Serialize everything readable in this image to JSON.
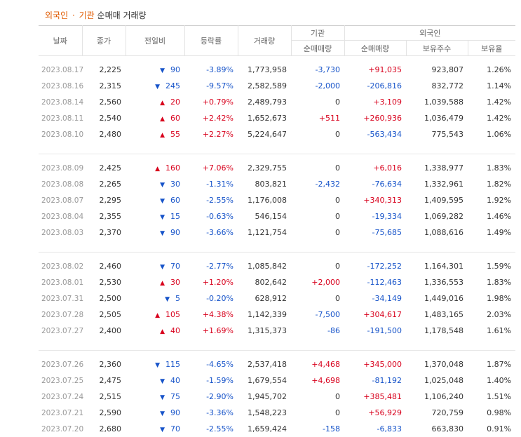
{
  "caption": {
    "part1": "외국인",
    "sep": "·",
    "part2": "기관",
    "rest": "순매매 거래량"
  },
  "headers": {
    "date": "날짜",
    "close": "종가",
    "change": "전일비",
    "rate": "등락률",
    "volume": "거래량",
    "inst": "기관",
    "inst_net": "순매매량",
    "foreign": "외국인",
    "foreign_net": "순매매량",
    "foreign_hold": "보유주수",
    "foreign_ratio": "보유율"
  },
  "groups": [
    [
      {
        "date": "2023.08.17",
        "close": "2,225",
        "dir": "down",
        "chg": "90",
        "rate": "-3.89%",
        "vol": "1,773,958",
        "inst": "-3,730",
        "fnet": "+91,035",
        "hold": "923,807",
        "ratio": "1.26%"
      },
      {
        "date": "2023.08.16",
        "close": "2,315",
        "dir": "down",
        "chg": "245",
        "rate": "-9.57%",
        "vol": "2,582,589",
        "inst": "-2,000",
        "fnet": "-206,816",
        "hold": "832,772",
        "ratio": "1.14%"
      },
      {
        "date": "2023.08.14",
        "close": "2,560",
        "dir": "up",
        "chg": "20",
        "rate": "+0.79%",
        "vol": "2,489,793",
        "inst": "0",
        "fnet": "+3,109",
        "hold": "1,039,588",
        "ratio": "1.42%"
      },
      {
        "date": "2023.08.11",
        "close": "2,540",
        "dir": "up",
        "chg": "60",
        "rate": "+2.42%",
        "vol": "1,652,673",
        "inst": "+511",
        "fnet": "+260,936",
        "hold": "1,036,479",
        "ratio": "1.42%"
      },
      {
        "date": "2023.08.10",
        "close": "2,480",
        "dir": "up",
        "chg": "55",
        "rate": "+2.27%",
        "vol": "5,224,647",
        "inst": "0",
        "fnet": "-563,434",
        "hold": "775,543",
        "ratio": "1.06%"
      }
    ],
    [
      {
        "date": "2023.08.09",
        "close": "2,425",
        "dir": "up",
        "chg": "160",
        "rate": "+7.06%",
        "vol": "2,329,755",
        "inst": "0",
        "fnet": "+6,016",
        "hold": "1,338,977",
        "ratio": "1.83%"
      },
      {
        "date": "2023.08.08",
        "close": "2,265",
        "dir": "down",
        "chg": "30",
        "rate": "-1.31%",
        "vol": "803,821",
        "inst": "-2,432",
        "fnet": "-76,634",
        "hold": "1,332,961",
        "ratio": "1.82%"
      },
      {
        "date": "2023.08.07",
        "close": "2,295",
        "dir": "down",
        "chg": "60",
        "rate": "-2.55%",
        "vol": "1,176,008",
        "inst": "0",
        "fnet": "+340,313",
        "hold": "1,409,595",
        "ratio": "1.92%"
      },
      {
        "date": "2023.08.04",
        "close": "2,355",
        "dir": "down",
        "chg": "15",
        "rate": "-0.63%",
        "vol": "546,154",
        "inst": "0",
        "fnet": "-19,334",
        "hold": "1,069,282",
        "ratio": "1.46%"
      },
      {
        "date": "2023.08.03",
        "close": "2,370",
        "dir": "down",
        "chg": "90",
        "rate": "-3.66%",
        "vol": "1,121,754",
        "inst": "0",
        "fnet": "-75,685",
        "hold": "1,088,616",
        "ratio": "1.49%"
      }
    ],
    [
      {
        "date": "2023.08.02",
        "close": "2,460",
        "dir": "down",
        "chg": "70",
        "rate": "-2.77%",
        "vol": "1,085,842",
        "inst": "0",
        "fnet": "-172,252",
        "hold": "1,164,301",
        "ratio": "1.59%"
      },
      {
        "date": "2023.08.01",
        "close": "2,530",
        "dir": "up",
        "chg": "30",
        "rate": "+1.20%",
        "vol": "802,642",
        "inst": "+2,000",
        "fnet": "-112,463",
        "hold": "1,336,553",
        "ratio": "1.83%"
      },
      {
        "date": "2023.07.31",
        "close": "2,500",
        "dir": "down",
        "chg": "5",
        "rate": "-0.20%",
        "vol": "628,912",
        "inst": "0",
        "fnet": "-34,149",
        "hold": "1,449,016",
        "ratio": "1.98%"
      },
      {
        "date": "2023.07.28",
        "close": "2,505",
        "dir": "up",
        "chg": "105",
        "rate": "+4.38%",
        "vol": "1,142,339",
        "inst": "-7,500",
        "fnet": "+304,617",
        "hold": "1,483,165",
        "ratio": "2.03%"
      },
      {
        "date": "2023.07.27",
        "close": "2,400",
        "dir": "up",
        "chg": "40",
        "rate": "+1.69%",
        "vol": "1,315,373",
        "inst": "-86",
        "fnet": "-191,500",
        "hold": "1,178,548",
        "ratio": "1.61%"
      }
    ],
    [
      {
        "date": "2023.07.26",
        "close": "2,360",
        "dir": "down",
        "chg": "115",
        "rate": "-4.65%",
        "vol": "2,537,418",
        "inst": "+4,468",
        "fnet": "+345,000",
        "hold": "1,370,048",
        "ratio": "1.87%"
      },
      {
        "date": "2023.07.25",
        "close": "2,475",
        "dir": "down",
        "chg": "40",
        "rate": "-1.59%",
        "vol": "1,679,554",
        "inst": "+4,698",
        "fnet": "-81,192",
        "hold": "1,025,048",
        "ratio": "1.40%"
      },
      {
        "date": "2023.07.24",
        "close": "2,515",
        "dir": "down",
        "chg": "75",
        "rate": "-2.90%",
        "vol": "1,945,702",
        "inst": "0",
        "fnet": "+385,481",
        "hold": "1,106,240",
        "ratio": "1.51%"
      },
      {
        "date": "2023.07.21",
        "close": "2,590",
        "dir": "down",
        "chg": "90",
        "rate": "-3.36%",
        "vol": "1,548,223",
        "inst": "0",
        "fnet": "+56,929",
        "hold": "720,759",
        "ratio": "0.98%"
      },
      {
        "date": "2023.07.20",
        "close": "2,680",
        "dir": "down",
        "chg": "70",
        "rate": "-2.55%",
        "vol": "1,659,424",
        "inst": "-158",
        "fnet": "-6,833",
        "hold": "663,830",
        "ratio": "0.91%"
      }
    ]
  ],
  "icons": {
    "up": "▲",
    "down": "▼"
  }
}
